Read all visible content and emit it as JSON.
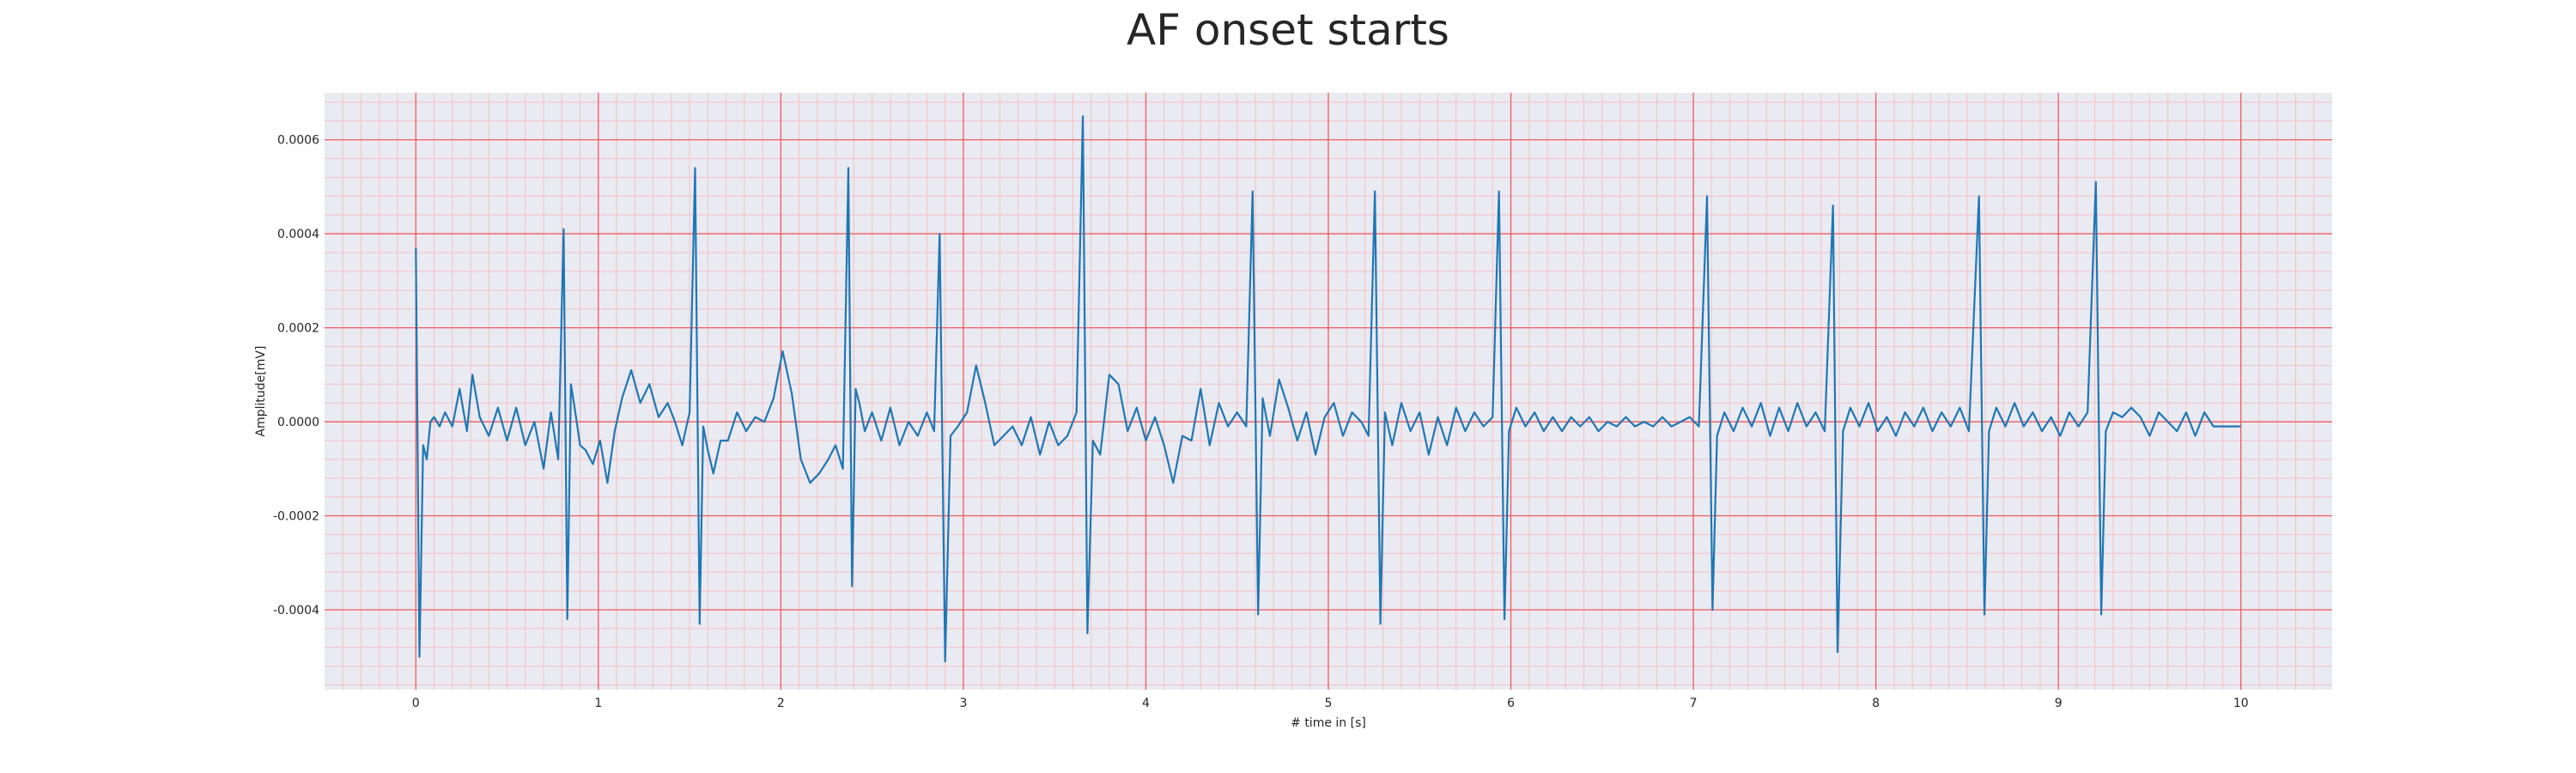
{
  "chart_data": {
    "type": "line",
    "title": "AF onset starts",
    "xlabel": "# time in [s]",
    "ylabel": "Amplitude[mV]",
    "xlim": [
      -0.5,
      10.5
    ],
    "ylim": [
      -0.00057,
      0.0007
    ],
    "x_ticks": [
      "0",
      "1",
      "2",
      "3",
      "4",
      "5",
      "6",
      "7",
      "8",
      "9",
      "10"
    ],
    "y_ticks": [
      "-0.0004",
      "-0.0002",
      "0.0000",
      "0.0002",
      "0.0004",
      "0.0006"
    ],
    "grid": true,
    "minor_grid": true,
    "series": [
      {
        "color": "#1f77b4",
        "x": [
          0.0,
          0.02,
          0.04,
          0.06,
          0.08,
          0.1,
          0.13,
          0.16,
          0.2,
          0.24,
          0.28,
          0.31,
          0.35,
          0.4,
          0.45,
          0.5,
          0.55,
          0.6,
          0.65,
          0.7,
          0.74,
          0.78,
          0.81,
          0.83,
          0.85,
          0.87,
          0.9,
          0.93,
          0.97,
          1.01,
          1.05,
          1.09,
          1.13,
          1.18,
          1.23,
          1.28,
          1.33,
          1.38,
          1.42,
          1.46,
          1.5,
          1.53,
          1.555,
          1.575,
          1.6,
          1.63,
          1.67,
          1.71,
          1.76,
          1.81,
          1.86,
          1.91,
          1.96,
          2.01,
          2.06,
          2.11,
          2.16,
          2.21,
          2.26,
          2.3,
          2.34,
          2.37,
          2.39,
          2.41,
          2.43,
          2.46,
          2.5,
          2.55,
          2.6,
          2.65,
          2.7,
          2.75,
          2.8,
          2.84,
          2.87,
          2.9,
          2.93,
          2.97,
          3.02,
          3.07,
          3.12,
          3.17,
          3.22,
          3.27,
          3.32,
          3.37,
          3.42,
          3.47,
          3.52,
          3.57,
          3.62,
          3.655,
          3.68,
          3.71,
          3.75,
          3.8,
          3.85,
          3.9,
          3.95,
          4.0,
          4.05,
          4.1,
          4.15,
          4.2,
          4.25,
          4.3,
          4.35,
          4.4,
          4.45,
          4.5,
          4.55,
          4.585,
          4.615,
          4.64,
          4.68,
          4.73,
          4.78,
          4.83,
          4.88,
          4.93,
          4.98,
          5.03,
          5.08,
          5.13,
          5.18,
          5.22,
          5.255,
          5.285,
          5.31,
          5.35,
          5.4,
          5.45,
          5.5,
          5.55,
          5.6,
          5.65,
          5.7,
          5.75,
          5.8,
          5.85,
          5.9,
          5.935,
          5.965,
          5.99,
          6.03,
          6.08,
          6.13,
          6.18,
          6.23,
          6.28,
          6.33,
          6.38,
          6.43,
          6.48,
          6.53,
          6.58,
          6.63,
          6.68,
          6.73,
          6.78,
          6.83,
          6.88,
          6.93,
          6.98,
          7.03,
          7.075,
          7.105,
          7.13,
          7.17,
          7.22,
          7.27,
          7.32,
          7.37,
          7.42,
          7.47,
          7.52,
          7.57,
          7.62,
          7.67,
          7.72,
          7.765,
          7.79,
          7.82,
          7.86,
          7.91,
          7.96,
          8.01,
          8.06,
          8.11,
          8.16,
          8.21,
          8.26,
          8.31,
          8.36,
          8.41,
          8.46,
          8.51,
          8.565,
          8.595,
          8.62,
          8.66,
          8.71,
          8.76,
          8.81,
          8.86,
          8.91,
          8.96,
          9.01,
          9.06,
          9.11,
          9.16,
          9.205,
          9.235,
          9.26,
          9.3,
          9.35,
          9.4,
          9.45,
          9.5,
          9.55,
          9.6,
          9.65,
          9.7,
          9.75,
          9.8,
          9.85,
          9.9,
          9.95,
          10.0
        ],
        "y": [
          0.00037,
          -0.0005,
          -5e-05,
          -8e-05,
          0.0,
          1e-05,
          -1e-05,
          2e-05,
          -1e-05,
          7e-05,
          -2e-05,
          0.0001,
          1e-05,
          -3e-05,
          3e-05,
          -4e-05,
          3e-05,
          -5e-05,
          0.0,
          -0.0001,
          2e-05,
          -8e-05,
          0.00041,
          -0.00042,
          8e-05,
          3e-05,
          -5e-05,
          -6e-05,
          -9e-05,
          -4e-05,
          -0.00013,
          -2e-05,
          5e-05,
          0.00011,
          4e-05,
          8e-05,
          1e-05,
          4e-05,
          0.0,
          -5e-05,
          2e-05,
          0.00054,
          -0.00043,
          -1e-05,
          -6e-05,
          -0.00011,
          -4e-05,
          -4e-05,
          2e-05,
          -2e-05,
          1e-05,
          0.0,
          5e-05,
          0.00015,
          6e-05,
          -8e-05,
          -0.00013,
          -0.00011,
          -8e-05,
          -5e-05,
          -0.0001,
          0.00054,
          -0.00035,
          7e-05,
          4e-05,
          -2e-05,
          2e-05,
          -4e-05,
          3e-05,
          -5e-05,
          0.0,
          -3e-05,
          2e-05,
          -2e-05,
          0.0004,
          -0.00051,
          -3e-05,
          -1e-05,
          2e-05,
          0.00012,
          4e-05,
          -5e-05,
          -3e-05,
          -1e-05,
          -5e-05,
          1e-05,
          -7e-05,
          0.0,
          -5e-05,
          -3e-05,
          2e-05,
          0.00065,
          -0.00045,
          -4e-05,
          -7e-05,
          0.0001,
          8e-05,
          -2e-05,
          3e-05,
          -4e-05,
          1e-05,
          -5e-05,
          -0.00013,
          -3e-05,
          -4e-05,
          7e-05,
          -5e-05,
          4e-05,
          -1e-05,
          2e-05,
          -1e-05,
          0.00049,
          -0.00041,
          5e-05,
          -3e-05,
          9e-05,
          3e-05,
          -4e-05,
          2e-05,
          -7e-05,
          1e-05,
          4e-05,
          -3e-05,
          2e-05,
          0.0,
          -3e-05,
          0.00049,
          -0.00043,
          2e-05,
          -5e-05,
          4e-05,
          -2e-05,
          2e-05,
          -7e-05,
          1e-05,
          -5e-05,
          3e-05,
          -2e-05,
          2e-05,
          -1e-05,
          1e-05,
          0.00049,
          -0.00042,
          -2e-05,
          3e-05,
          -1e-05,
          2e-05,
          -2e-05,
          1e-05,
          -2e-05,
          1e-05,
          -1e-05,
          1e-05,
          -2e-05,
          0.0,
          -1e-05,
          1e-05,
          -1e-05,
          0.0,
          -1e-05,
          1e-05,
          -1e-05,
          0.0,
          1e-05,
          -1e-05,
          0.00048,
          -0.0004,
          -3e-05,
          2e-05,
          -2e-05,
          3e-05,
          -1e-05,
          4e-05,
          -3e-05,
          3e-05,
          -2e-05,
          4e-05,
          -1e-05,
          2e-05,
          -2e-05,
          0.00046,
          -0.00049,
          -2e-05,
          3e-05,
          -1e-05,
          4e-05,
          -2e-05,
          1e-05,
          -3e-05,
          2e-05,
          -1e-05,
          3e-05,
          -2e-05,
          2e-05,
          -1e-05,
          3e-05,
          -2e-05,
          0.00048,
          -0.00041,
          -2e-05,
          3e-05,
          -1e-05,
          4e-05,
          -1e-05,
          2e-05,
          -2e-05,
          1e-05,
          -3e-05,
          2e-05,
          -1e-05,
          2e-05,
          0.00051,
          -0.00041,
          -2e-05,
          2e-05,
          1e-05,
          3e-05,
          1e-05,
          -3e-05,
          2e-05,
          0.0,
          -2e-05,
          2e-05,
          -3e-05,
          2e-05,
          -1e-05,
          -1e-05,
          -1e-05,
          -1e-05
        ]
      }
    ]
  }
}
